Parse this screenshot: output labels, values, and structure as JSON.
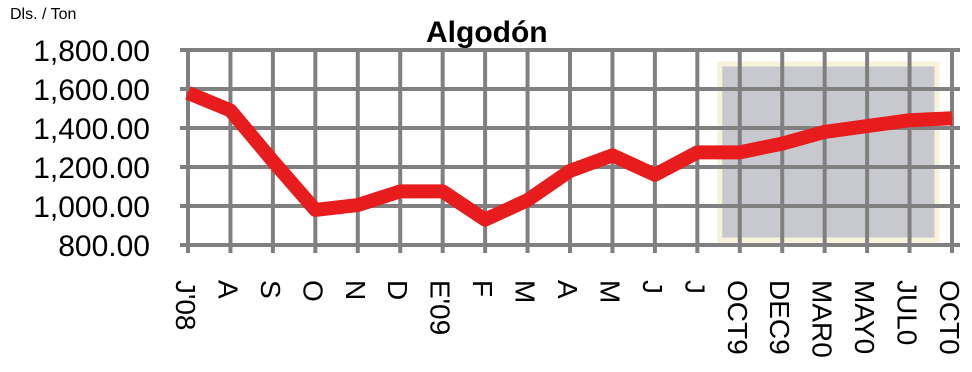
{
  "chart_data": {
    "type": "line",
    "title": "Algodón",
    "ylabel": "Dls. / Ton",
    "xlabel": "",
    "categories": [
      "J'08",
      "A",
      "S",
      "O",
      "N",
      "D",
      "E'09",
      "F",
      "M",
      "A",
      "M",
      "J",
      "J",
      "OCT9",
      "DEC9",
      "MAR0",
      "MAY0",
      "JUL0",
      "OCT0"
    ],
    "y_tick_labels": [
      "800.00",
      "1,000.00",
      "1,200.00",
      "1,400.00",
      "1,600.00",
      "1,800.00"
    ],
    "y_ticks": [
      800,
      1000,
      1200,
      1400,
      1600,
      1800
    ],
    "ylim": [
      800,
      1800
    ],
    "grid": true,
    "series": [
      {
        "values": [
          1580,
          1490,
          1230,
          980,
          1005,
          1075,
          1075,
          930,
          1030,
          1180,
          1260,
          1160,
          1275,
          1275,
          1320,
          1380,
          1410,
          1440,
          1450
        ]
      }
    ],
    "highlight": {
      "from_category": "OCT9",
      "to_category": "OCT0"
    },
    "colors": {
      "line": "#e81c1c",
      "grid": "#808080",
      "highlight": "#c8c9cf",
      "highlight_border": "#f6f3d8"
    }
  }
}
